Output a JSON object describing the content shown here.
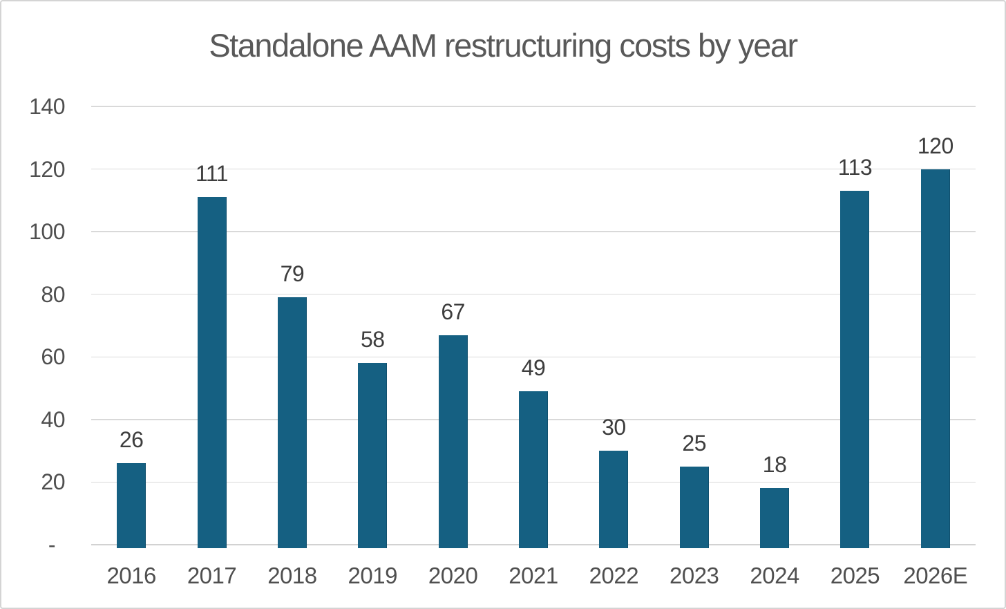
{
  "chart_data": {
    "type": "bar",
    "title": "Standalone AAM restructuring costs by year",
    "categories": [
      "2016",
      "2017",
      "2018",
      "2019",
      "2020",
      "2021",
      "2022",
      "2023",
      "2024",
      "2025",
      "2026E"
    ],
    "values": [
      26,
      111,
      79,
      58,
      67,
      49,
      30,
      25,
      18,
      113,
      120
    ],
    "data_labels": [
      "26",
      "111",
      "79",
      "58",
      "67",
      "49",
      "30",
      "25",
      "18",
      "113",
      "120"
    ],
    "y_tick_labels": [
      "140",
      "120",
      "100",
      "80",
      "60",
      "40",
      "20"
    ],
    "y_tick_values": [
      140,
      120,
      100,
      80,
      60,
      40,
      20
    ],
    "zero_tick_label": "-",
    "ylim": [
      0,
      140
    ],
    "grid": true,
    "legend": "none",
    "colors": {
      "bar_fill": "#156082",
      "bar_edge": "#10506e",
      "title_text": "#595959",
      "axis_label_text": "#4f4f4f",
      "data_label_text": "#3d3d3d",
      "gridline": "#d9d9d9",
      "zero_axis_line": "#d2d2d2",
      "canvas_border": "#d4d4d4",
      "background": "#ffffff"
    }
  }
}
